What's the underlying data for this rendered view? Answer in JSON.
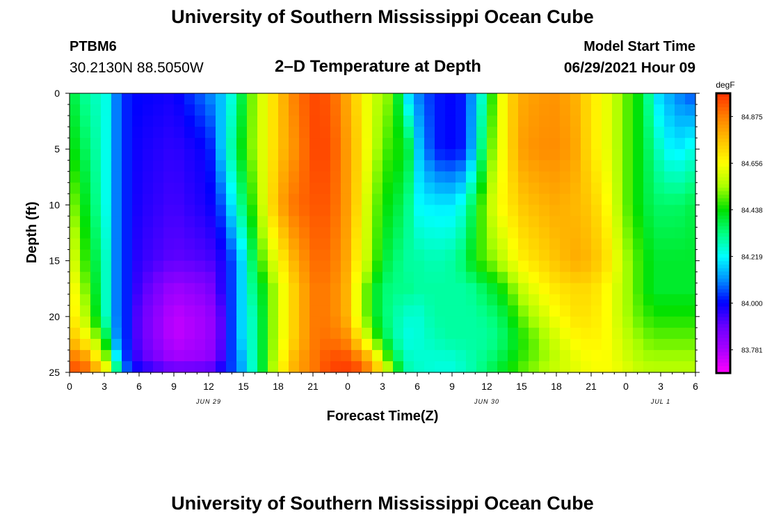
{
  "header": {
    "title": "University of Southern Mississippi Ocean Cube",
    "station_id": "PTBM6",
    "coordinates": "30.2130N  88.5050W",
    "plot_title": "2–D Temperature at Depth",
    "model_start_label": "Model Start Time",
    "model_start_value": "06/29/2021 Hour 09"
  },
  "footer": {
    "title": "University of Southern Mississippi Ocean Cube"
  },
  "chart_data": {
    "type": "heatmap",
    "title": "2–D Temperature at Depth",
    "xlabel": "Forecast Time(Z)",
    "ylabel": "Depth (ft)",
    "x_tick_labels": [
      "0",
      "3",
      "6",
      "9",
      "12",
      "15",
      "18",
      "21",
      "0",
      "3",
      "6",
      "9",
      "12",
      "15",
      "18",
      "21",
      "0",
      "3",
      "6"
    ],
    "x_date_labels": [
      {
        "label": "JUN 29",
        "tick_index": 4
      },
      {
        "label": "JUN 30",
        "tick_index": 12
      },
      {
        "label": "JUL 1",
        "tick_index": 17
      }
    ],
    "x_range_hours": [
      0,
      54
    ],
    "y_tick_labels": [
      "0",
      "5",
      "10",
      "15",
      "20",
      "25"
    ],
    "ylim": [
      0,
      25
    ],
    "y_inverted": true,
    "colorbar": {
      "unit": "degF",
      "tick_labels": [
        "84.875",
        "84.656",
        "84.438",
        "84.219",
        "84.000",
        "83.781"
      ],
      "min": 83.672,
      "max": 84.984
    },
    "color_stops": [
      "#ff00ff",
      "#aa00ff",
      "#6a00ff",
      "#0000ff",
      "#0090ff",
      "#00ffff",
      "#00ff80",
      "#00e000",
      "#aaff00",
      "#ffff00",
      "#ffc000",
      "#ff7f00",
      "#ff3000"
    ],
    "x_hours": [
      0,
      1.5,
      3,
      3.5,
      4,
      4.5,
      5,
      6,
      9,
      12,
      13,
      14,
      15,
      16,
      17,
      18,
      19.5,
      21,
      22.5,
      24,
      25,
      26,
      27,
      28,
      29,
      30,
      31.5,
      33,
      34,
      35,
      36,
      37,
      38,
      39,
      40.5,
      42,
      43.5,
      45,
      46.5,
      48,
      49.5,
      50.5,
      51.5,
      52.5,
      54
    ],
    "depth_rows": [
      0,
      5,
      10,
      15,
      17.5,
      20,
      22,
      24,
      25
    ],
    "temperatures": [
      [
        84.4,
        84.3,
        84.25,
        84.22,
        84.1,
        84.05,
        84.02,
        84.0,
        83.98,
        84.1,
        84.15,
        84.25,
        84.4,
        84.55,
        84.65,
        84.75,
        84.88,
        84.95,
        84.93,
        84.8,
        84.7,
        84.6,
        84.55,
        84.5,
        84.2,
        84.1,
        84.02,
        84.0,
        84.02,
        84.15,
        84.35,
        84.6,
        84.73,
        84.8,
        84.83,
        84.84,
        84.8,
        84.7,
        84.62,
        84.5,
        84.4,
        84.2,
        84.15,
        84.1,
        84.05
      ],
      [
        84.45,
        84.35,
        84.25,
        84.2,
        84.1,
        84.05,
        84.02,
        83.98,
        83.95,
        84.0,
        84.15,
        84.3,
        84.45,
        84.55,
        84.65,
        84.75,
        84.85,
        84.95,
        84.95,
        84.82,
        84.72,
        84.6,
        84.5,
        84.45,
        84.45,
        84.18,
        84.02,
        84.0,
        84.02,
        84.18,
        84.45,
        84.6,
        84.73,
        84.82,
        84.85,
        84.85,
        84.82,
        84.7,
        84.62,
        84.5,
        84.4,
        84.3,
        84.22,
        84.2,
        84.25
      ],
      [
        84.55,
        84.4,
        84.25,
        84.2,
        84.1,
        84.05,
        84.02,
        83.97,
        83.93,
        83.98,
        84.05,
        84.2,
        84.35,
        84.5,
        84.65,
        84.8,
        84.9,
        84.93,
        84.93,
        84.82,
        84.7,
        84.55,
        84.45,
        84.4,
        84.35,
        84.22,
        84.2,
        84.2,
        84.25,
        84.4,
        84.55,
        84.65,
        84.7,
        84.75,
        84.78,
        84.8,
        84.78,
        84.75,
        84.65,
        84.5,
        84.4,
        84.35,
        84.35,
        84.35,
        84.38
      ],
      [
        84.65,
        84.45,
        84.3,
        84.2,
        84.1,
        84.05,
        84.02,
        83.95,
        83.9,
        83.92,
        83.96,
        84.05,
        84.2,
        84.4,
        84.55,
        84.65,
        84.8,
        84.9,
        84.9,
        84.8,
        84.65,
        84.55,
        84.4,
        84.35,
        84.3,
        84.3,
        84.28,
        84.3,
        84.35,
        84.45,
        84.5,
        84.55,
        84.62,
        84.68,
        84.72,
        84.76,
        84.8,
        84.78,
        84.7,
        84.55,
        84.45,
        84.4,
        84.4,
        84.4,
        84.4
      ],
      [
        84.7,
        84.5,
        84.3,
        84.2,
        84.1,
        84.05,
        84.02,
        83.93,
        83.8,
        83.85,
        83.95,
        84.05,
        84.2,
        84.35,
        84.45,
        84.6,
        84.75,
        84.88,
        84.88,
        84.78,
        84.6,
        84.45,
        84.35,
        84.32,
        84.32,
        84.3,
        84.3,
        84.3,
        84.3,
        84.32,
        84.38,
        84.42,
        84.5,
        84.58,
        84.65,
        84.7,
        84.72,
        84.72,
        84.65,
        84.55,
        84.45,
        84.4,
        84.4,
        84.4,
        84.4
      ],
      [
        84.72,
        84.55,
        84.3,
        84.2,
        84.1,
        84.05,
        84.02,
        83.9,
        83.75,
        83.8,
        83.9,
        84.05,
        84.2,
        84.3,
        84.45,
        84.6,
        84.75,
        84.88,
        84.88,
        84.78,
        84.6,
        84.45,
        84.35,
        84.3,
        84.26,
        84.25,
        84.3,
        84.3,
        84.3,
        84.3,
        84.32,
        84.35,
        84.42,
        84.5,
        84.58,
        84.65,
        84.7,
        84.7,
        84.65,
        84.55,
        84.48,
        84.45,
        84.45,
        84.45,
        84.45
      ],
      [
        84.78,
        84.65,
        84.45,
        84.25,
        84.12,
        84.05,
        84.02,
        83.9,
        83.75,
        83.8,
        83.9,
        84.05,
        84.2,
        84.3,
        84.45,
        84.6,
        84.75,
        84.88,
        84.9,
        84.85,
        84.7,
        84.55,
        84.4,
        84.3,
        84.24,
        84.25,
        84.28,
        84.3,
        84.3,
        84.3,
        84.3,
        84.33,
        84.38,
        84.45,
        84.52,
        84.6,
        84.66,
        84.68,
        84.65,
        84.58,
        84.52,
        84.5,
        84.5,
        84.5,
        84.5
      ],
      [
        84.92,
        84.85,
        84.6,
        84.45,
        84.25,
        84.1,
        84.03,
        83.93,
        83.8,
        83.82,
        83.92,
        84.05,
        84.15,
        84.3,
        84.45,
        84.62,
        84.8,
        84.88,
        84.95,
        84.95,
        84.9,
        84.8,
        84.6,
        84.4,
        84.28,
        84.26,
        84.25,
        84.25,
        84.27,
        84.3,
        84.33,
        84.37,
        84.42,
        84.47,
        84.52,
        84.57,
        84.62,
        84.65,
        84.65,
        84.6,
        84.55,
        84.55,
        84.55,
        84.55,
        84.55
      ],
      [
        84.95,
        84.92,
        84.75,
        84.6,
        84.4,
        84.2,
        84.08,
        84.0,
        83.93,
        83.95,
        84.0,
        84.05,
        84.15,
        84.3,
        84.45,
        84.65,
        84.8,
        84.88,
        84.96,
        84.97,
        84.95,
        84.85,
        84.7,
        84.5,
        84.3,
        84.27,
        84.25,
        84.25,
        84.27,
        84.3,
        84.35,
        84.4,
        84.45,
        84.5,
        84.55,
        84.6,
        84.62,
        84.65,
        84.65,
        84.62,
        84.58,
        84.57,
        84.57,
        84.57,
        84.57
      ]
    ]
  }
}
